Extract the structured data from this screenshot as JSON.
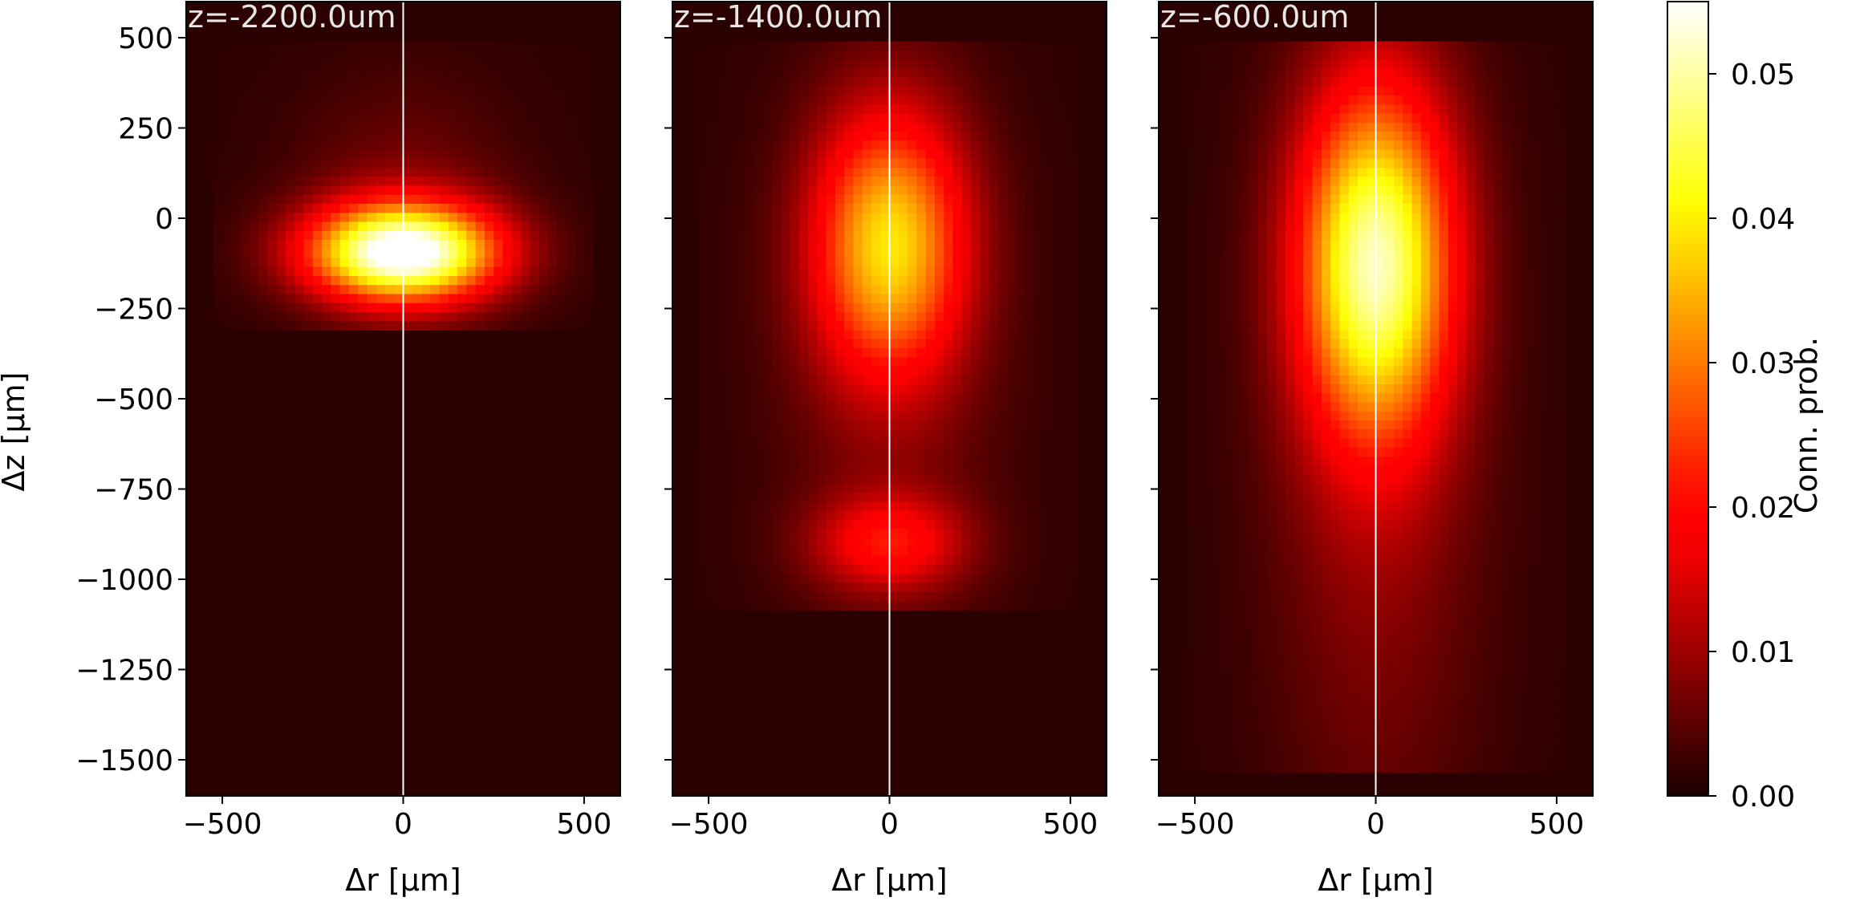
{
  "chart_data": {
    "type": "heatmap",
    "colormap": "hot",
    "x_axis_label": "Δr [μm]",
    "y_axis_label": "Δz [μm]",
    "xlim": [
      -600,
      600
    ],
    "ylim": [
      -1600,
      600
    ],
    "x_ticks": [
      -500,
      0,
      500
    ],
    "y_ticks": [
      500,
      250,
      0,
      -250,
      -500,
      -750,
      -1000,
      -1250,
      -1500
    ],
    "panels": [
      {
        "title": "z=-2200.0um",
        "data_extent": {
          "r": [
            -525,
            525
          ],
          "z": [
            -290,
            490
          ]
        },
        "blobs": [
          {
            "r0": 0,
            "z0": -95,
            "sr": 185,
            "sz": 95,
            "amp": 0.055
          },
          {
            "r0": 0,
            "z0": 40,
            "sr": 210,
            "sz": 240,
            "amp": 0.006
          }
        ]
      },
      {
        "title": "z=-1400.0um",
        "data_extent": {
          "r": [
            -525,
            525
          ],
          "z": [
            -1080,
            490
          ]
        },
        "blobs": [
          {
            "r0": 0,
            "z0": -70,
            "sr": 150,
            "sz": 260,
            "amp": 0.034
          },
          {
            "r0": 0,
            "z0": -900,
            "sr": 150,
            "sz": 95,
            "amp": 0.017
          },
          {
            "r0": 0,
            "z0": -450,
            "sr": 230,
            "sz": 600,
            "amp": 0.005
          }
        ]
      },
      {
        "title": "z=-600.0um",
        "data_extent": {
          "r": [
            -525,
            525
          ],
          "z": [
            -1520,
            490
          ]
        },
        "blobs": [
          {
            "r0": 0,
            "z0": -120,
            "sr": 150,
            "sz": 340,
            "amp": 0.044
          },
          {
            "r0": 0,
            "z0": -650,
            "sr": 210,
            "sz": 800,
            "amp": 0.008
          }
        ]
      }
    ],
    "colorbar": {
      "label": "Conn. prob.",
      "range": [
        0.0,
        0.055
      ],
      "ticks": [
        "0.00",
        "0.01",
        "0.02",
        "0.03",
        "0.04",
        "0.05"
      ],
      "tick_values": [
        0.0,
        0.01,
        0.02,
        0.03,
        0.04,
        0.05
      ]
    }
  }
}
